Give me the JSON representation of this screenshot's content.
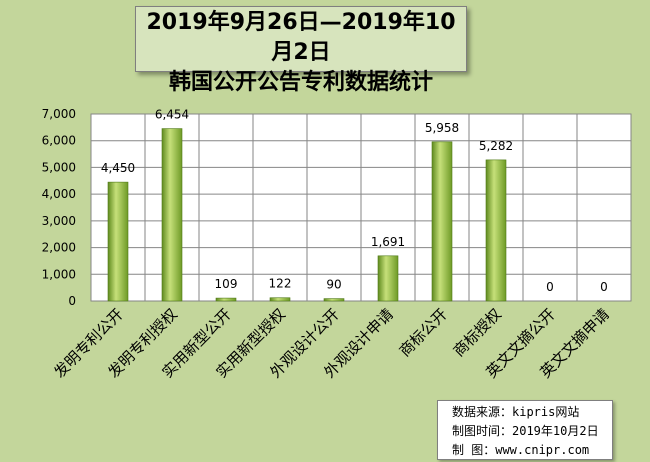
{
  "title": {
    "line1": "2019年9月26日—2019年10月2日",
    "line2": "韩国公开公告专利数据统计"
  },
  "source": {
    "line1": "数据来源：kipris网站",
    "line2": "制图时间：2019年10月2日",
    "line3": "制    图：www.cnipr.com"
  },
  "colors": {
    "background": "#c3d69b",
    "plot": "#ffffff",
    "bar_light": "#c6e07a",
    "bar_dark": "#5f8a1e"
  },
  "chart_data": {
    "type": "bar",
    "categories": [
      "发明专利公开",
      "发明专利授权",
      "实用新型公开",
      "实用新型授权",
      "外观设计公开",
      "外观设计申请",
      "商标公开",
      "商标授权",
      "英文文摘公开",
      "英文文摘申请"
    ],
    "values": [
      4450,
      6454,
      109,
      122,
      90,
      1691,
      5958,
      5282,
      0,
      0
    ],
    "value_labels": [
      "4,450",
      "6,454",
      "109",
      "122",
      "90",
      "1,691",
      "5,958",
      "5,282",
      "0",
      "0"
    ],
    "ylim": [
      0,
      7000
    ],
    "yticks": [
      "0",
      "1,000",
      "2,000",
      "3,000",
      "4,000",
      "5,000",
      "6,000",
      "7,000"
    ],
    "ytick_values": [
      0,
      1000,
      2000,
      3000,
      4000,
      5000,
      6000,
      7000
    ],
    "grid": true,
    "legend": "none"
  }
}
